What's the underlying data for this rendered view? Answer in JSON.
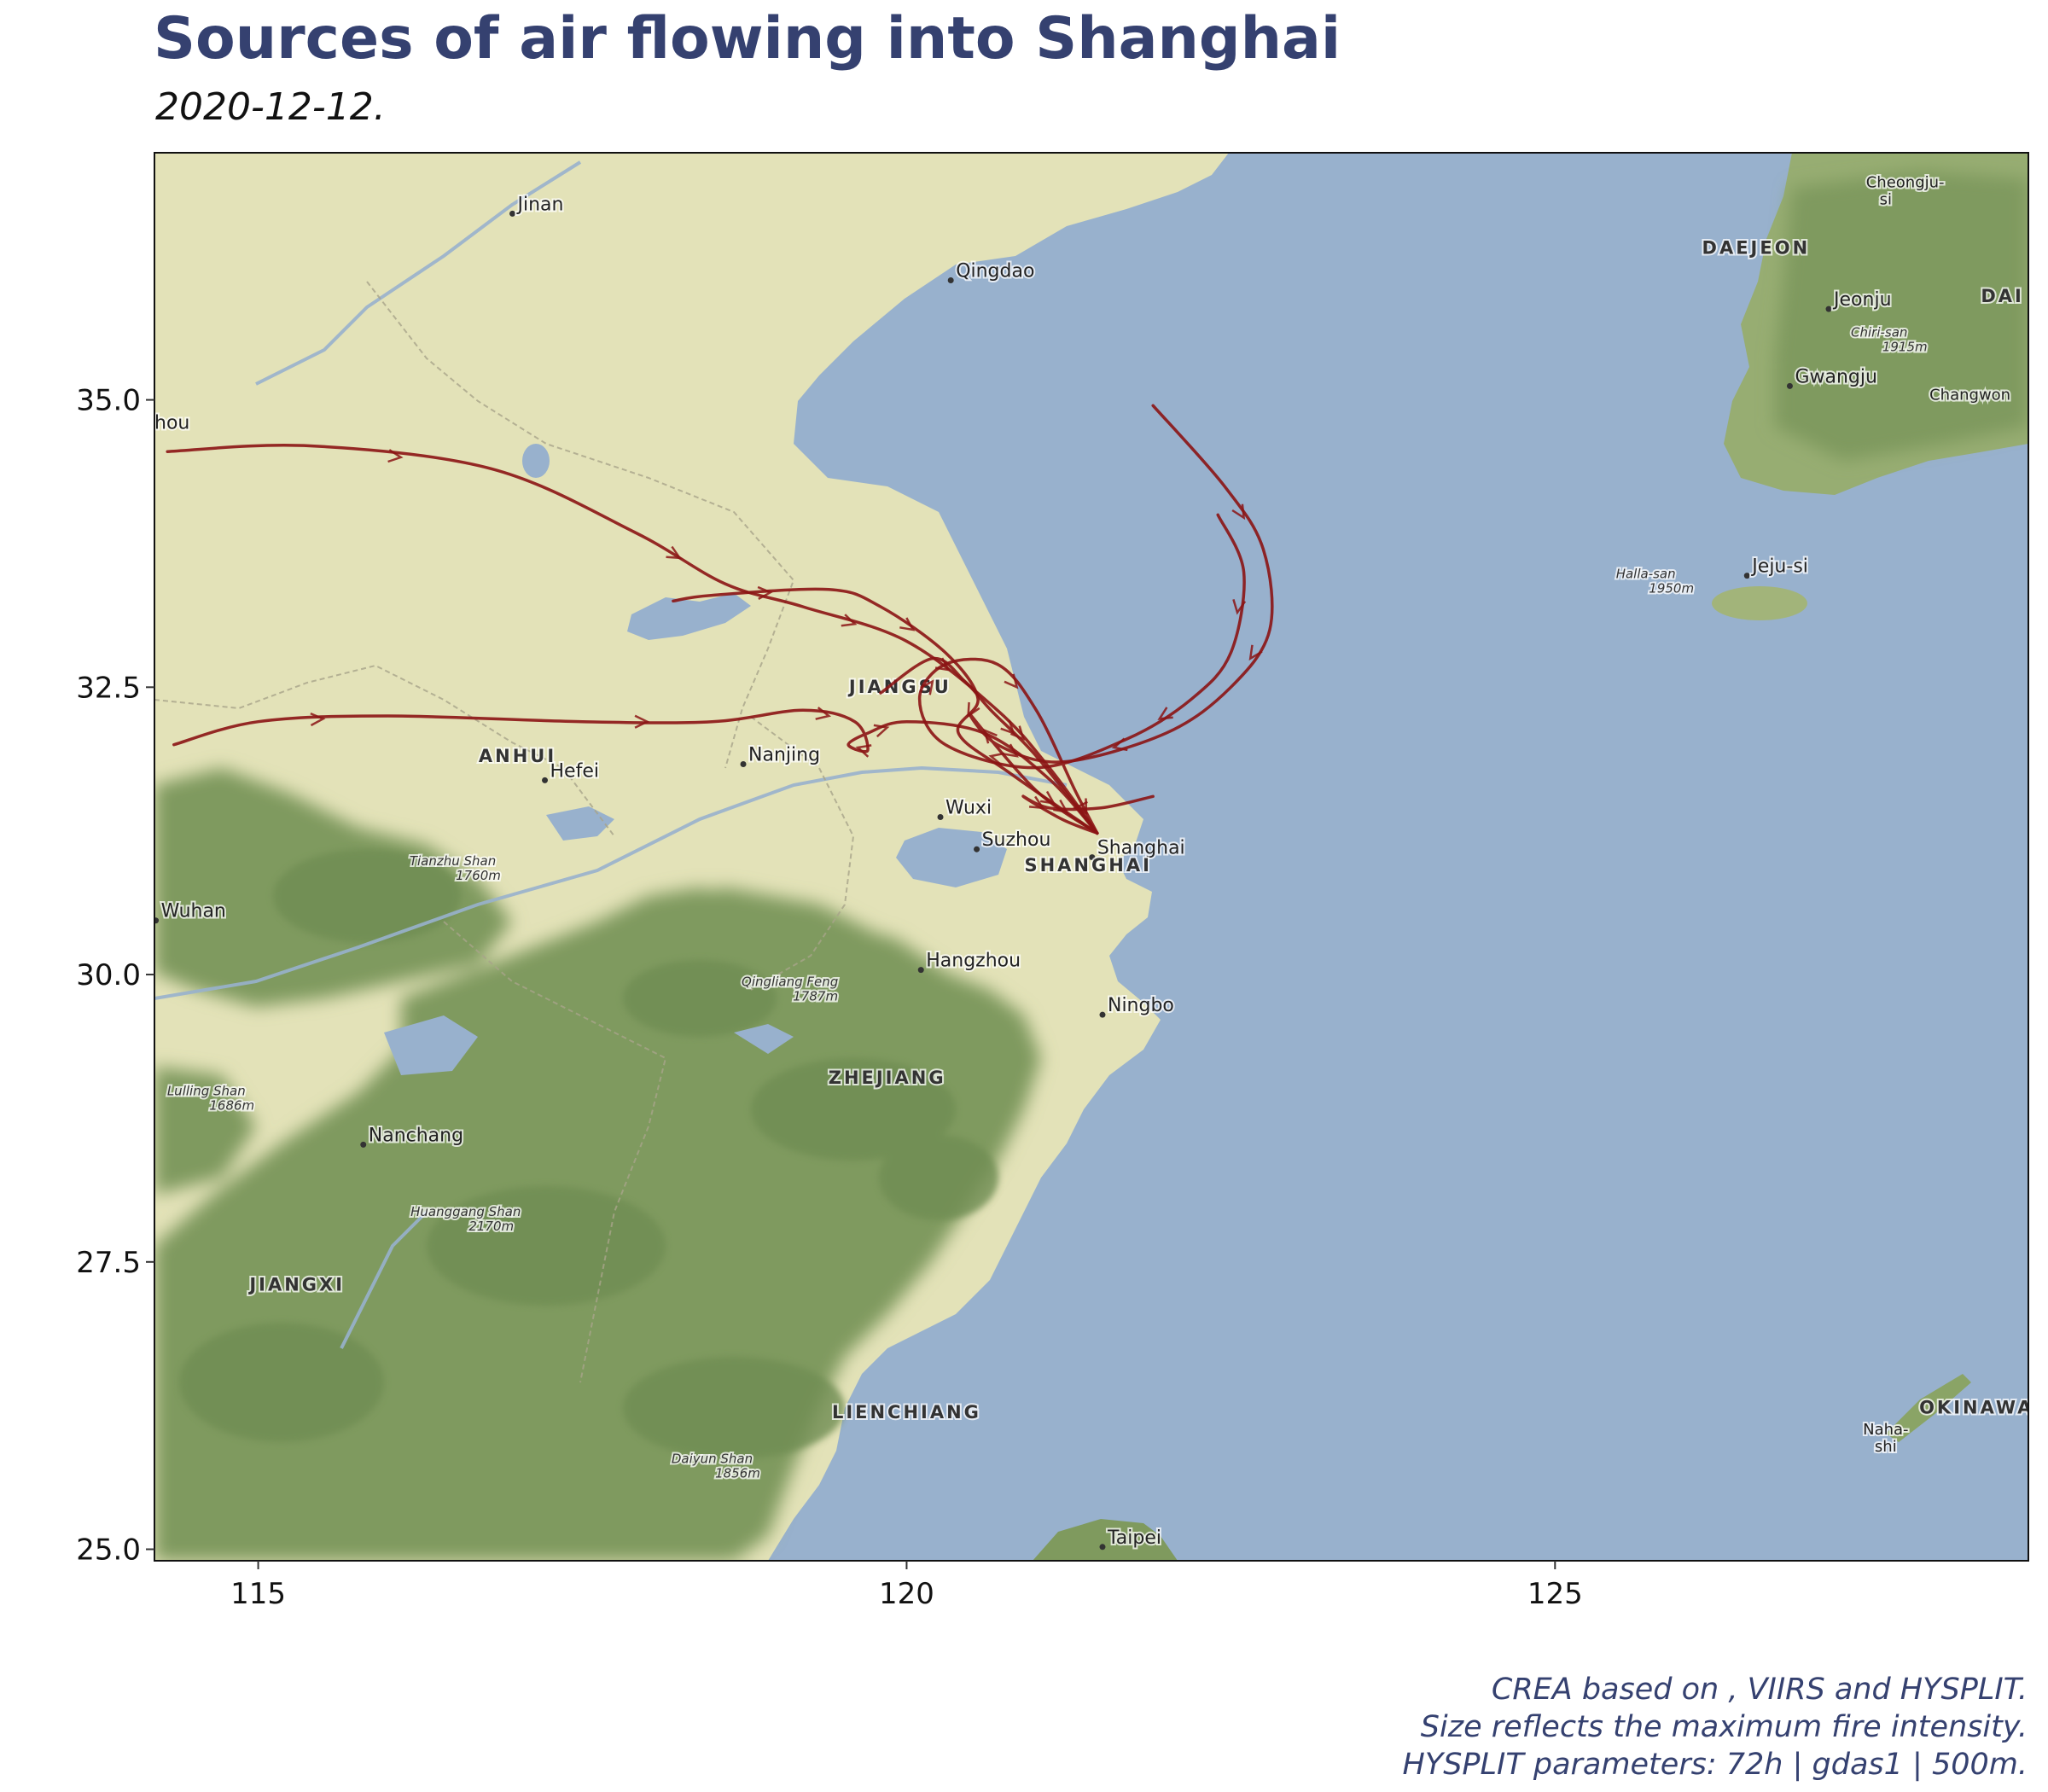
{
  "title": "Sources of air flowing into Shanghai",
  "subtitle": "2020-12-12.",
  "caption": [
    "CREA based on , VIIRS and HYSPLIT.",
    "Size reflects the maximum fire intensity.",
    "HYSPLIT parameters: 72h | gdas1 | 500m."
  ],
  "colors": {
    "trajectory": "#8b1414",
    "sea": "#98b1cd",
    "land": "#e3e2b8",
    "forest": "#7f9a5e",
    "title": "#354170"
  },
  "chart_data": {
    "type": "map-trajectories",
    "xlim": [
      114.2,
      128.65
    ],
    "ylim": [
      24.9,
      37.15
    ],
    "x_ticks": [
      "115",
      "120",
      "125"
    ],
    "y_ticks": [
      "35.0",
      "32.5",
      "30.0",
      "27.5",
      "25.0"
    ],
    "x_tick_values": [
      115,
      120,
      125
    ],
    "y_tick_values": [
      35.0,
      32.5,
      30.0,
      27.5,
      25.0
    ],
    "receptor": {
      "name": "Shanghai",
      "lon": 121.47,
      "lat": 31.23
    },
    "trajectories": [
      {
        "points": [
          [
            114.3,
            34.55
          ],
          [
            115.4,
            34.6
          ],
          [
            116.8,
            34.4
          ],
          [
            117.9,
            33.85
          ],
          [
            118.6,
            33.4
          ],
          [
            119.2,
            33.2
          ],
          [
            120.0,
            32.9
          ],
          [
            120.7,
            32.3
          ],
          [
            121.1,
            31.8
          ],
          [
            121.47,
            31.23
          ]
        ]
      },
      {
        "points": [
          [
            114.35,
            32.0
          ],
          [
            115.0,
            32.2
          ],
          [
            116.0,
            32.25
          ],
          [
            117.5,
            32.2
          ],
          [
            118.5,
            32.2
          ],
          [
            119.2,
            32.3
          ],
          [
            119.6,
            32.2
          ],
          [
            119.7,
            31.95
          ],
          [
            119.55,
            32.0
          ],
          [
            119.7,
            32.1
          ],
          [
            120.0,
            32.2
          ],
          [
            120.6,
            32.1
          ],
          [
            121.1,
            31.7
          ],
          [
            121.47,
            31.23
          ]
        ]
      },
      {
        "points": [
          [
            121.9,
            34.95
          ],
          [
            122.45,
            34.25
          ],
          [
            122.75,
            33.7
          ],
          [
            122.8,
            33.0
          ],
          [
            122.5,
            32.5
          ],
          [
            122.0,
            32.1
          ],
          [
            121.2,
            31.85
          ],
          [
            120.7,
            32.0
          ],
          [
            120.5,
            32.25
          ],
          [
            121.0,
            31.6
          ],
          [
            121.47,
            31.23
          ]
        ]
      },
      {
        "points": [
          [
            122.4,
            34.0
          ],
          [
            122.6,
            33.5
          ],
          [
            122.5,
            32.8
          ],
          [
            122.2,
            32.4
          ],
          [
            121.7,
            32.05
          ],
          [
            121.0,
            31.8
          ],
          [
            120.3,
            32.0
          ],
          [
            120.1,
            32.4
          ],
          [
            120.3,
            32.7
          ],
          [
            120.7,
            32.7
          ],
          [
            121.0,
            32.3
          ],
          [
            121.3,
            31.6
          ],
          [
            121.47,
            31.23
          ]
        ]
      },
      {
        "points": [
          [
            118.2,
            33.25
          ],
          [
            118.5,
            33.3
          ],
          [
            119.4,
            33.35
          ],
          [
            119.8,
            33.2
          ],
          [
            120.3,
            32.8
          ],
          [
            120.55,
            32.4
          ],
          [
            120.4,
            32.1
          ],
          [
            120.8,
            31.75
          ],
          [
            121.47,
            31.23
          ]
        ]
      },
      {
        "points": [
          [
            119.8,
            32.45
          ],
          [
            120.2,
            32.75
          ],
          [
            120.45,
            32.55
          ],
          [
            120.65,
            32.3
          ],
          [
            121.0,
            31.9
          ],
          [
            121.47,
            31.23
          ]
        ]
      },
      {
        "points": [
          [
            121.9,
            31.55
          ],
          [
            121.5,
            31.45
          ],
          [
            121.1,
            31.45
          ],
          [
            120.9,
            31.55
          ],
          [
            121.2,
            31.35
          ],
          [
            121.47,
            31.23
          ]
        ]
      }
    ]
  },
  "map": {
    "cities": [
      {
        "name": "Jinan",
        "lon": 117.0,
        "lat": 36.65
      },
      {
        "name": "Qingdao",
        "lon": 120.38,
        "lat": 36.07
      },
      {
        "name": "Nanjing",
        "lon": 118.78,
        "lat": 31.86
      },
      {
        "name": "Hefei",
        "lon": 117.25,
        "lat": 31.72
      },
      {
        "name": "Wuxi",
        "lon": 120.3,
        "lat": 31.4
      },
      {
        "name": "Suzhou",
        "lon": 120.58,
        "lat": 31.12
      },
      {
        "name": "Shanghai",
        "lon": 121.47,
        "lat": 31.05
      },
      {
        "name": "Hangzhou",
        "lon": 120.15,
        "lat": 30.07
      },
      {
        "name": "Ningbo",
        "lon": 121.55,
        "lat": 29.68
      },
      {
        "name": "Wuhan",
        "lon": 114.25,
        "lat": 30.5
      },
      {
        "name": "Nanchang",
        "lon": 115.85,
        "lat": 28.55
      },
      {
        "name": "Taipei",
        "lon": 121.55,
        "lat": 25.05
      },
      {
        "name": "Jeonju",
        "lon": 127.15,
        "lat": 35.82
      },
      {
        "name": "Gwangju",
        "lon": 126.85,
        "lat": 35.15
      },
      {
        "name": "Jeju-si",
        "lon": 126.52,
        "lat": 33.5
      },
      {
        "name": "hou",
        "lon": 114.2,
        "lat": 34.75
      }
    ],
    "regions": [
      {
        "name": "JIANGSU",
        "lon": 119.95,
        "lat": 32.45
      },
      {
        "name": "ANHUI",
        "lon": 117.0,
        "lat": 31.85
      },
      {
        "name": "SHANGHAI",
        "lon": 121.4,
        "lat": 30.9
      },
      {
        "name": "ZHEJIANG",
        "lon": 119.85,
        "lat": 29.05
      },
      {
        "name": "JIANGXI",
        "lon": 115.3,
        "lat": 27.25
      },
      {
        "name": "LIENCHIANG",
        "lon": 120.0,
        "lat": 26.14
      },
      {
        "name": "DAEJEON",
        "lon": 126.55,
        "lat": 36.27
      },
      {
        "name": "OKINAWA",
        "lon": 128.25,
        "lat": 26.18
      },
      {
        "name": "DAI",
        "lon": 128.45,
        "lat": 35.85
      }
    ],
    "peaks": [
      {
        "name": "Tianzhu Shan",
        "elev": "1760m",
        "lon": 116.5,
        "lat": 30.95
      },
      {
        "name": "Qingliang Feng",
        "elev": "1787m",
        "lon": 119.1,
        "lat": 29.9
      },
      {
        "name": "Lulling Shan",
        "elev": "1686m",
        "lon": 114.6,
        "lat": 28.95
      },
      {
        "name": "Huanggang Shan",
        "elev": "2170m",
        "lon": 116.6,
        "lat": 27.9
      },
      {
        "name": "Daiyun Shan",
        "elev": "1856m",
        "lon": 118.5,
        "lat": 25.75
      },
      {
        "name": "Chiri-san",
        "elev": "1915m",
        "lon": 127.5,
        "lat": 35.55
      },
      {
        "name": "Halla-san",
        "elev": "1950m",
        "lon": 125.7,
        "lat": 33.45
      }
    ],
    "extra_labels": [
      {
        "text": "Cheongju-",
        "lon": 127.7,
        "lat": 36.85
      },
      {
        "text": "si",
        "lon": 127.55,
        "lat": 36.7
      },
      {
        "text": "Changwon",
        "lon": 128.2,
        "lat": 35.0
      },
      {
        "text": "Naha-",
        "lon": 127.55,
        "lat": 26.0
      },
      {
        "text": "shi",
        "lon": 127.55,
        "lat": 25.85
      }
    ]
  }
}
